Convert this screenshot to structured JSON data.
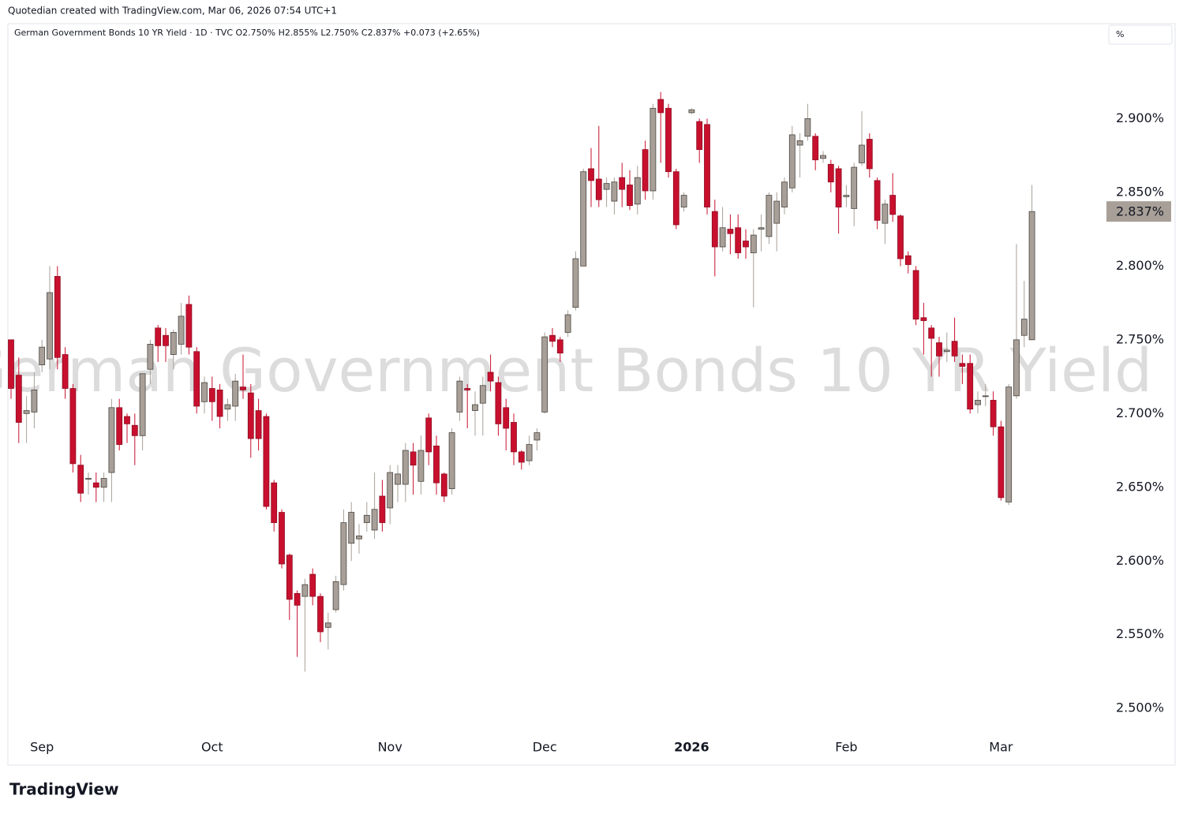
{
  "header": "Quotedian created with TradingView.com, Mar 06, 2026 07:54 UTC+1",
  "footer": "TradingView",
  "chart_data": {
    "type": "candlestick",
    "title": "German Government Bonds 10 YR Yield",
    "legend_text": "German Government Bonds 10 YR Yield · 1D · TVC  O2.750%  H2.855%  L2.750%  C2.837%  +0.073 (+2.65%)",
    "unit_label": "%",
    "last_value": {
      "value": 2.837,
      "label": "2.837%"
    },
    "up_color": "#a8a098",
    "down_color": "#c8102e",
    "grid": false,
    "ylim": [
      2.483,
      2.951
    ],
    "yticks": [
      {
        "value": 2.5,
        "label": "2.500%"
      },
      {
        "value": 2.55,
        "label": "2.550%"
      },
      {
        "value": 2.6,
        "label": "2.600%"
      },
      {
        "value": 2.65,
        "label": "2.650%"
      },
      {
        "value": 2.7,
        "label": "2.700%"
      },
      {
        "value": 2.75,
        "label": "2.750%"
      },
      {
        "value": 2.8,
        "label": "2.800%"
      },
      {
        "value": 2.85,
        "label": "2.850%"
      },
      {
        "value": 2.9,
        "label": "2.900%"
      }
    ],
    "categories": [
      null,
      null,
      null,
      null,
      "Sep",
      null,
      null,
      null,
      null,
      null,
      null,
      null,
      null,
      null,
      null,
      null,
      null,
      null,
      null,
      null,
      null,
      null,
      null,
      null,
      null,
      null,
      "Oct",
      null,
      null,
      null,
      null,
      null,
      null,
      null,
      null,
      null,
      null,
      null,
      null,
      null,
      null,
      null,
      null,
      null,
      null,
      null,
      null,
      null,
      null,
      "Nov",
      null,
      null,
      null,
      null,
      null,
      null,
      null,
      null,
      null,
      null,
      null,
      null,
      null,
      null,
      null,
      null,
      null,
      null,
      null,
      "Dec",
      null,
      null,
      null,
      null,
      null,
      null,
      null,
      null,
      null,
      null,
      null,
      null,
      null,
      null,
      null,
      null,
      null,
      null,
      "2026",
      null,
      null,
      null,
      null,
      null,
      null,
      null,
      null,
      null,
      null,
      null,
      null,
      null,
      null,
      null,
      null,
      null,
      null,
      null,
      "Feb",
      null,
      null,
      null,
      null,
      null,
      null,
      null,
      null,
      null,
      null,
      null,
      null,
      null,
      null,
      null,
      null,
      null,
      null,
      null,
      "Mar",
      null,
      null,
      null,
      null
    ],
    "open": [
      2.75,
      2.726,
      2.7,
      2.701,
      2.733,
      2.737,
      2.793,
      2.74,
      2.717,
      2.665,
      2.656,
      2.653,
      2.65,
      2.66,
      2.704,
      2.698,
      2.692,
      2.685,
      2.73,
      2.758,
      2.753,
      2.74,
      2.747,
      2.774,
      2.742,
      2.708,
      2.717,
      2.716,
      2.703,
      2.705,
      2.718,
      2.714,
      2.702,
      2.698,
      2.653,
      2.633,
      2.604,
      2.578,
      2.576,
      2.591,
      2.576,
      2.555,
      2.567,
      2.584,
      2.612,
      2.615,
      2.626,
      2.621,
      2.644,
      2.636,
      2.652,
      2.652,
      2.674,
      2.654,
      2.697,
      2.678,
      2.659,
      2.649,
      2.701,
      2.717,
      2.702,
      2.707,
      2.728,
      2.721,
      2.704,
      2.694,
      2.674,
      2.668,
      2.682,
      2.701,
      2.753,
      2.75,
      2.755,
      2.772,
      2.8,
      2.866,
      2.859,
      2.852,
      2.844,
      2.86,
      2.855,
      2.842,
      2.879,
      2.851,
      2.913,
      2.907,
      2.864,
      2.84,
      2.904,
      2.898,
      2.896,
      2.837,
      2.813,
      2.825,
      2.826,
      2.817,
      2.809,
      2.825,
      2.82,
      2.829,
      2.84,
      2.853,
      2.882,
      2.888,
      2.888,
      2.873,
      2.869,
      2.866,
      2.847,
      2.839,
      2.87,
      2.886,
      2.858,
      2.829,
      2.848,
      2.834,
      2.807,
      2.797,
      2.765,
      2.758,
      2.748,
      2.742,
      2.749,
      2.734,
      2.734,
      2.706,
      2.712,
      2.709,
      2.691,
      2.64,
      2.712,
      2.753,
      2.75
    ],
    "high": [
      2.75,
      2.738,
      2.712,
      2.728,
      2.75,
      2.8,
      2.8,
      2.745,
      2.72,
      2.672,
      2.66,
      2.66,
      2.66,
      2.71,
      2.71,
      2.7,
      2.7,
      2.727,
      2.75,
      2.76,
      2.758,
      2.757,
      2.775,
      2.78,
      2.745,
      2.725,
      2.725,
      2.72,
      2.71,
      2.727,
      2.74,
      2.72,
      2.71,
      2.7,
      2.655,
      2.635,
      2.605,
      2.58,
      2.588,
      2.595,
      2.578,
      2.565,
      2.59,
      2.635,
      2.64,
      2.625,
      2.64,
      2.66,
      2.655,
      2.665,
      2.665,
      2.68,
      2.68,
      2.685,
      2.7,
      2.685,
      2.66,
      2.69,
      2.725,
      2.72,
      2.715,
      2.725,
      2.74,
      2.725,
      2.71,
      2.7,
      2.675,
      2.685,
      2.69,
      2.755,
      2.758,
      2.752,
      2.77,
      2.81,
      2.866,
      2.88,
      2.895,
      2.86,
      2.86,
      2.87,
      2.865,
      2.868,
      2.885,
      2.91,
      2.918,
      2.91,
      2.866,
      2.85,
      2.907,
      2.9,
      2.9,
      2.845,
      2.84,
      2.835,
      2.835,
      2.825,
      2.825,
      2.835,
      2.85,
      2.85,
      2.86,
      2.895,
      2.89,
      2.91,
      2.89,
      2.878,
      2.872,
      2.868,
      2.855,
      2.87,
      2.905,
      2.89,
      2.86,
      2.845,
      2.863,
      2.835,
      2.81,
      2.8,
      2.775,
      2.76,
      2.752,
      2.755,
      2.765,
      2.74,
      2.74,
      2.715,
      2.72,
      2.715,
      2.695,
      2.72,
      2.815,
      2.79,
      2.855
    ],
    "low": [
      2.71,
      2.68,
      2.68,
      2.69,
      2.728,
      2.73,
      2.73,
      2.71,
      2.66,
      2.64,
      2.645,
      2.64,
      2.64,
      2.64,
      2.675,
      2.68,
      2.665,
      2.675,
      2.72,
      2.735,
      2.735,
      2.73,
      2.74,
      2.74,
      2.7,
      2.7,
      2.695,
      2.69,
      2.695,
      2.695,
      2.71,
      2.67,
      2.675,
      2.635,
      2.62,
      2.595,
      2.56,
      2.535,
      2.525,
      2.57,
      2.545,
      2.54,
      2.565,
      2.58,
      2.6,
      2.605,
      2.62,
      2.615,
      2.62,
      2.625,
      2.64,
      2.64,
      2.645,
      2.645,
      2.665,
      2.645,
      2.64,
      2.645,
      2.695,
      2.69,
      2.685,
      2.685,
      2.715,
      2.685,
      2.675,
      2.665,
      2.662,
      2.665,
      2.675,
      2.7,
      2.745,
      2.735,
      2.752,
      2.77,
      2.8,
      2.84,
      2.84,
      2.84,
      2.835,
      2.84,
      2.838,
      2.835,
      2.845,
      2.845,
      2.87,
      2.86,
      2.825,
      2.837,
      2.903,
      2.87,
      2.835,
      2.793,
      2.81,
      2.808,
      2.805,
      2.805,
      2.772,
      2.81,
      2.815,
      2.81,
      2.835,
      2.85,
      2.86,
      2.885,
      2.865,
      2.87,
      2.85,
      2.822,
      2.84,
      2.827,
      2.868,
      2.86,
      2.825,
      2.815,
      2.83,
      2.8,
      2.795,
      2.76,
      2.74,
      2.725,
      2.725,
      2.735,
      2.735,
      2.72,
      2.7,
      2.7,
      2.705,
      2.685,
      2.641,
      2.638,
      2.71,
      2.745,
      2.75
    ],
    "close": [
      2.717,
      2.694,
      2.702,
      2.716,
      2.745,
      2.782,
      2.738,
      2.717,
      2.666,
      2.646,
      2.656,
      2.65,
      2.656,
      2.704,
      2.679,
      2.693,
      2.685,
      2.727,
      2.747,
      2.746,
      2.746,
      2.755,
      2.766,
      2.745,
      2.705,
      2.721,
      2.708,
      2.698,
      2.706,
      2.722,
      2.716,
      2.683,
      2.683,
      2.637,
      2.626,
      2.598,
      2.574,
      2.57,
      2.584,
      2.576,
      2.552,
      2.558,
      2.586,
      2.626,
      2.633,
      2.617,
      2.631,
      2.635,
      2.626,
      2.66,
      2.659,
      2.675,
      2.665,
      2.675,
      2.674,
      2.653,
      2.644,
      2.687,
      2.722,
      2.716,
      2.706,
      2.719,
      2.722,
      2.693,
      2.69,
      2.674,
      2.667,
      2.679,
      2.687,
      2.752,
      2.749,
      2.741,
      2.767,
      2.805,
      2.864,
      2.858,
      2.845,
      2.856,
      2.857,
      2.852,
      2.841,
      2.86,
      2.851,
      2.907,
      2.904,
      2.864,
      2.828,
      2.848,
      2.906,
      2.879,
      2.84,
      2.813,
      2.826,
      2.822,
      2.809,
      2.813,
      2.821,
      2.826,
      2.848,
      2.844,
      2.857,
      2.889,
      2.885,
      2.9,
      2.872,
      2.875,
      2.857,
      2.84,
      2.848,
      2.867,
      2.882,
      2.866,
      2.831,
      2.842,
      2.835,
      2.805,
      2.801,
      2.764,
      2.763,
      2.751,
      2.739,
      2.743,
      2.739,
      2.732,
      2.703,
      2.709,
      2.712,
      2.691,
      2.643,
      2.718,
      2.75,
      2.764,
      2.837
    ]
  }
}
